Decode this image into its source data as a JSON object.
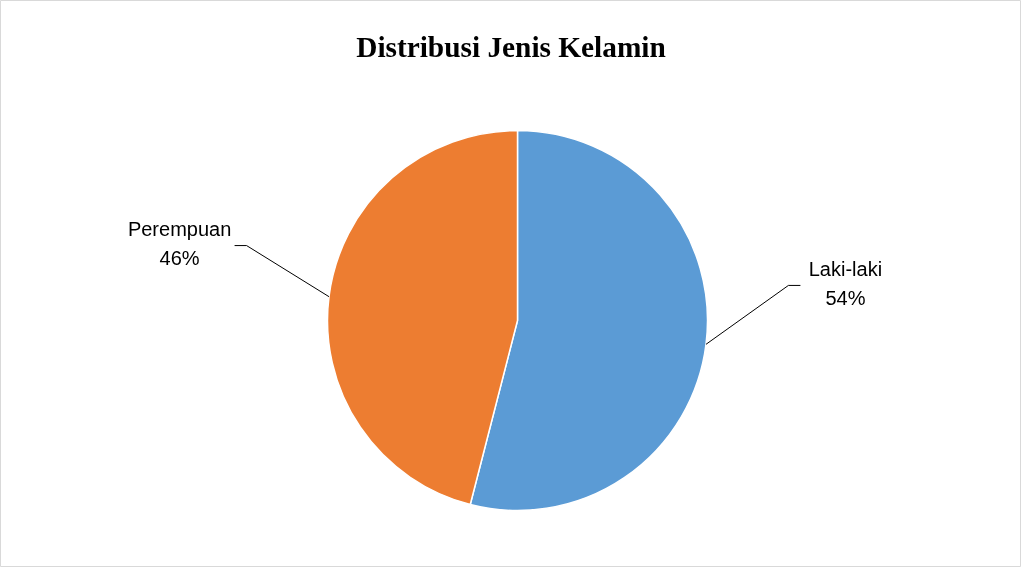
{
  "chart_data": {
    "type": "pie",
    "title": "Distribusi Jenis Kelamin",
    "categories": [
      "Laki-laki",
      "Perempuan"
    ],
    "values": [
      54,
      46
    ],
    "colors": [
      "#5b9bd5",
      "#ed7d31"
    ],
    "value_labels": [
      "54%",
      "46%"
    ]
  }
}
